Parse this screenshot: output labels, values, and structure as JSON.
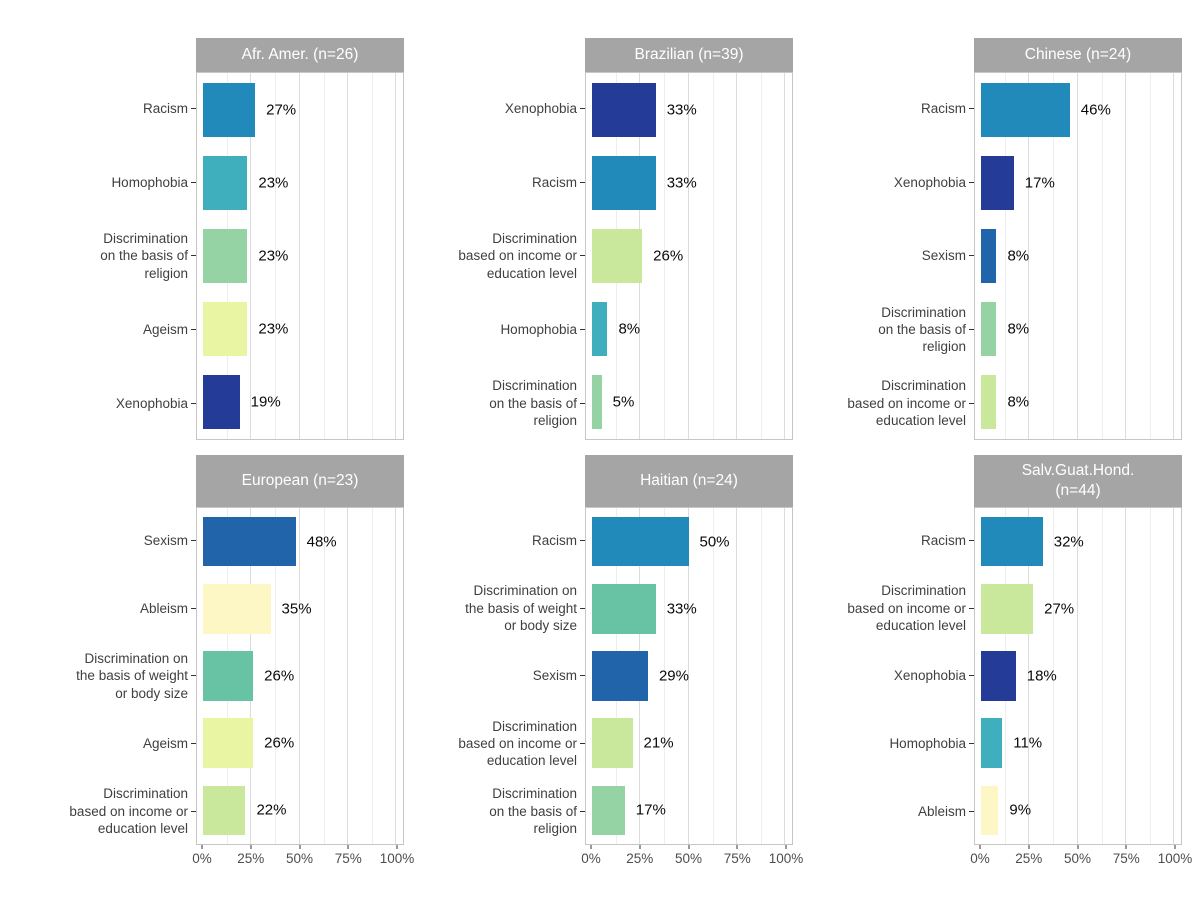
{
  "chart_data": {
    "type": "bar",
    "orientation": "horizontal",
    "xlabel": "",
    "ylabel": "",
    "xlim": [
      0,
      100
    ],
    "x_tick_labels": [
      "0%",
      "25%",
      "50%",
      "75%",
      "100%"
    ],
    "x_tick_values": [
      0,
      25,
      50,
      75,
      100
    ],
    "minor_grid_values": [
      12.5,
      37.5,
      62.5,
      87.5
    ],
    "major_grid_values": [
      25,
      50,
      75,
      100
    ],
    "strip_bg_color": "#a5a5a5",
    "category_colors": {
      "Racism": "#2289bb",
      "Homophobia": "#3fafbe",
      "Sexism": "#2264aa",
      "Xenophobia": "#243b97",
      "Ableism": "#fcf7c5",
      "Ageism": "#e9f5a2",
      "Discrimination on the basis of religion": "#95d2a4",
      "Discrimination based on income or education level": "#c9e89b",
      "Discrimination on the basis of weight or body size": "#68c2a4"
    },
    "facets": [
      {
        "title": "Afr. Amer. (n=26)",
        "row": "top",
        "bars": [
          {
            "category": "Racism",
            "label_display": "Racism",
            "value": 27
          },
          {
            "category": "Homophobia",
            "label_display": "Homophobia",
            "value": 23
          },
          {
            "category": "Discrimination on the basis of religion",
            "label_display": "Discrimination\non the basis of\nreligion",
            "value": 23
          },
          {
            "category": "Ageism",
            "label_display": "Ageism",
            "value": 23
          },
          {
            "category": "Xenophobia",
            "label_display": "Xenophobia",
            "value": 19
          }
        ]
      },
      {
        "title": "Brazilian (n=39)",
        "row": "top",
        "bars": [
          {
            "category": "Xenophobia",
            "label_display": "Xenophobia",
            "value": 33
          },
          {
            "category": "Racism",
            "label_display": "Racism",
            "value": 33
          },
          {
            "category": "Discrimination based on income or education level",
            "label_display": "Discrimination\nbased on income or\neducation level",
            "value": 26
          },
          {
            "category": "Homophobia",
            "label_display": "Homophobia",
            "value": 8
          },
          {
            "category": "Discrimination on the basis of religion",
            "label_display": "Discrimination\non the basis of\nreligion",
            "value": 5
          }
        ]
      },
      {
        "title": "Chinese (n=24)",
        "row": "top",
        "bars": [
          {
            "category": "Racism",
            "label_display": "Racism",
            "value": 46
          },
          {
            "category": "Xenophobia",
            "label_display": "Xenophobia",
            "value": 17
          },
          {
            "category": "Sexism",
            "label_display": "Sexism",
            "value": 8
          },
          {
            "category": "Discrimination on the basis of religion",
            "label_display": "Discrimination\non the basis of\nreligion",
            "value": 8
          },
          {
            "category": "Discrimination based on income or education level",
            "label_display": "Discrimination\nbased on income or\neducation level",
            "value": 8
          }
        ]
      },
      {
        "title": "European (n=23)",
        "row": "bottom",
        "bars": [
          {
            "category": "Sexism",
            "label_display": "Sexism",
            "value": 48
          },
          {
            "category": "Ableism",
            "label_display": "Ableism",
            "value": 35
          },
          {
            "category": "Discrimination on the basis of weight or body size",
            "label_display": "Discrimination on\nthe basis of weight\nor body size",
            "value": 26
          },
          {
            "category": "Ageism",
            "label_display": "Ageism",
            "value": 26
          },
          {
            "category": "Discrimination based on income or education level",
            "label_display": "Discrimination\nbased on income or\neducation level",
            "value": 22
          }
        ]
      },
      {
        "title": "Haitian (n=24)",
        "row": "bottom",
        "bars": [
          {
            "category": "Racism",
            "label_display": "Racism",
            "value": 50
          },
          {
            "category": "Discrimination on the basis of weight or body size",
            "label_display": "Discrimination on\nthe basis of weight\nor body size",
            "value": 33
          },
          {
            "category": "Sexism",
            "label_display": "Sexism",
            "value": 29
          },
          {
            "category": "Discrimination based on income or education level",
            "label_display": "Discrimination\nbased on income or\neducation level",
            "value": 21
          },
          {
            "category": "Discrimination on the basis of religion",
            "label_display": "Discrimination\non the basis of\nreligion",
            "value": 17
          }
        ]
      },
      {
        "title": "Salv.Guat.Hond.\n(n=44)",
        "row": "bottom",
        "bars": [
          {
            "category": "Racism",
            "label_display": "Racism",
            "value": 32
          },
          {
            "category": "Discrimination based on income or education level",
            "label_display": "Discrimination\nbased on income or\neducation level",
            "value": 27
          },
          {
            "category": "Xenophobia",
            "label_display": "Xenophobia",
            "value": 18
          },
          {
            "category": "Homophobia",
            "label_display": "Homophobia",
            "value": 11
          },
          {
            "category": "Ableism",
            "label_display": "Ableism",
            "value": 9
          }
        ]
      }
    ]
  }
}
